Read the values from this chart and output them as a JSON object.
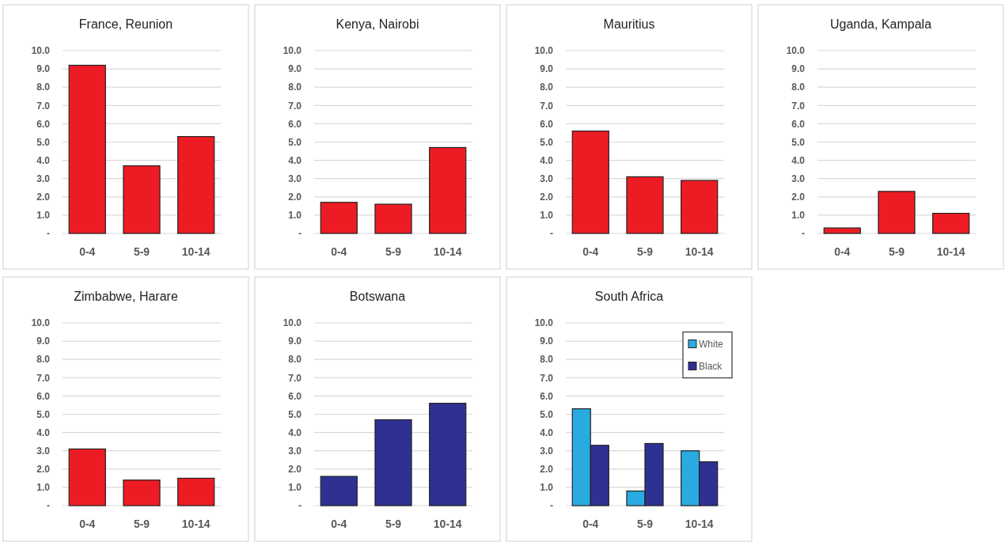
{
  "chart_data": [
    {
      "type": "bar",
      "title": "France, Reunion",
      "categories": [
        "0-4",
        "5-9",
        "10-14"
      ],
      "values": [
        9.2,
        3.7,
        5.3
      ],
      "color": "#ed1c24",
      "ylim": [
        0,
        10
      ],
      "yticks": [
        {
          "value": 0,
          "label": "-"
        },
        {
          "value": 1,
          "label": "1.0"
        },
        {
          "value": 2,
          "label": "2.0"
        },
        {
          "value": 3,
          "label": "3.0"
        },
        {
          "value": 4,
          "label": "4.0"
        },
        {
          "value": 5,
          "label": "5.0"
        },
        {
          "value": 6,
          "label": "6.0"
        },
        {
          "value": 7,
          "label": "7.0"
        },
        {
          "value": 8,
          "label": "8.0"
        },
        {
          "value": 9,
          "label": "9.0"
        },
        {
          "value": 10,
          "label": "10.0"
        }
      ],
      "grid": "y"
    },
    {
      "type": "bar",
      "title": "Kenya, Nairobi",
      "categories": [
        "0-4",
        "5-9",
        "10-14"
      ],
      "values": [
        1.7,
        1.6,
        4.7
      ],
      "color": "#ed1c24",
      "ylim": [
        0,
        10
      ],
      "yticks": [
        {
          "value": 0,
          "label": "-"
        },
        {
          "value": 1,
          "label": "1.0"
        },
        {
          "value": 2,
          "label": "2.0"
        },
        {
          "value": 3,
          "label": "3.0"
        },
        {
          "value": 4,
          "label": "4.0"
        },
        {
          "value": 5,
          "label": "5.0"
        },
        {
          "value": 6,
          "label": "6.0"
        },
        {
          "value": 7,
          "label": "7.0"
        },
        {
          "value": 8,
          "label": "8.0"
        },
        {
          "value": 9,
          "label": "9.0"
        },
        {
          "value": 10,
          "label": "10.0"
        }
      ],
      "grid": "y"
    },
    {
      "type": "bar",
      "title": "Mauritius",
      "categories": [
        "0-4",
        "5-9",
        "10-14"
      ],
      "values": [
        5.6,
        3.1,
        2.9
      ],
      "color": "#ed1c24",
      "ylim": [
        0,
        10
      ],
      "yticks": [
        {
          "value": 0,
          "label": "-"
        },
        {
          "value": 1,
          "label": "1.0"
        },
        {
          "value": 2,
          "label": "2.0"
        },
        {
          "value": 3,
          "label": "3.0"
        },
        {
          "value": 4,
          "label": "4.0"
        },
        {
          "value": 5,
          "label": "5.0"
        },
        {
          "value": 6,
          "label": "6.0"
        },
        {
          "value": 7,
          "label": "7.0"
        },
        {
          "value": 8,
          "label": "8.0"
        },
        {
          "value": 9,
          "label": "9.0"
        },
        {
          "value": 10,
          "label": "10.0"
        }
      ],
      "grid": "y"
    },
    {
      "type": "bar",
      "title": "Uganda, Kampala",
      "categories": [
        "0-4",
        "5-9",
        "10-14"
      ],
      "values": [
        0.3,
        2.3,
        1.1
      ],
      "color": "#ed1c24",
      "ylim": [
        0,
        10
      ],
      "yticks": [
        {
          "value": 0,
          "label": "-"
        },
        {
          "value": 1,
          "label": "1.0"
        },
        {
          "value": 2,
          "label": "2.0"
        },
        {
          "value": 3,
          "label": "3.0"
        },
        {
          "value": 4,
          "label": "4.0"
        },
        {
          "value": 5,
          "label": "5.0"
        },
        {
          "value": 6,
          "label": "6.0"
        },
        {
          "value": 7,
          "label": "7.0"
        },
        {
          "value": 8,
          "label": "8.0"
        },
        {
          "value": 9,
          "label": "9.0"
        },
        {
          "value": 10,
          "label": "10.0"
        }
      ],
      "grid": "y"
    },
    {
      "type": "bar",
      "title": "Zimbabwe, Harare",
      "categories": [
        "0-4",
        "5-9",
        "10-14"
      ],
      "values": [
        3.1,
        1.4,
        1.5
      ],
      "color": "#ed1c24",
      "ylim": [
        0,
        10
      ],
      "yticks": [
        {
          "value": 0,
          "label": "-"
        },
        {
          "value": 1,
          "label": "1.0"
        },
        {
          "value": 2,
          "label": "2.0"
        },
        {
          "value": 3,
          "label": "3.0"
        },
        {
          "value": 4,
          "label": "4.0"
        },
        {
          "value": 5,
          "label": "5.0"
        },
        {
          "value": 6,
          "label": "6.0"
        },
        {
          "value": 7,
          "label": "7.0"
        },
        {
          "value": 8,
          "label": "8.0"
        },
        {
          "value": 9,
          "label": "9.0"
        },
        {
          "value": 10,
          "label": "10.0"
        }
      ],
      "grid": "y"
    },
    {
      "type": "bar",
      "title": "Botswana",
      "categories": [
        "0-4",
        "5-9",
        "10-14"
      ],
      "values": [
        1.6,
        4.7,
        5.6
      ],
      "color": "#2e3192",
      "ylim": [
        0,
        10
      ],
      "yticks": [
        {
          "value": 0,
          "label": "-"
        },
        {
          "value": 1,
          "label": "1.0"
        },
        {
          "value": 2,
          "label": "2.0"
        },
        {
          "value": 3,
          "label": "3.0"
        },
        {
          "value": 4,
          "label": "4.0"
        },
        {
          "value": 5,
          "label": "5.0"
        },
        {
          "value": 6,
          "label": "6.0"
        },
        {
          "value": 7,
          "label": "7.0"
        },
        {
          "value": 8,
          "label": "8.0"
        },
        {
          "value": 9,
          "label": "9.0"
        },
        {
          "value": 10,
          "label": "10.0"
        }
      ],
      "grid": "y"
    },
    {
      "type": "bar",
      "title": "South Africa",
      "categories": [
        "0-4",
        "5-9",
        "10-14"
      ],
      "series": [
        {
          "name": "White",
          "color": "#29abe2",
          "values": [
            5.3,
            0.8,
            3.0
          ]
        },
        {
          "name": "Black",
          "color": "#2e3192",
          "values": [
            3.3,
            3.4,
            2.4
          ]
        }
      ],
      "ylim": [
        0,
        10
      ],
      "yticks": [
        {
          "value": 0,
          "label": "-"
        },
        {
          "value": 1,
          "label": "1.0"
        },
        {
          "value": 2,
          "label": "2.0"
        },
        {
          "value": 3,
          "label": "3.0"
        },
        {
          "value": 4,
          "label": "4.0"
        },
        {
          "value": 5,
          "label": "5.0"
        },
        {
          "value": 6,
          "label": "6.0"
        },
        {
          "value": 7,
          "label": "7.0"
        },
        {
          "value": 8,
          "label": "8.0"
        },
        {
          "value": 9,
          "label": "9.0"
        },
        {
          "value": 10,
          "label": "10.0"
        }
      ],
      "grid": "y",
      "legend": "top right"
    }
  ]
}
